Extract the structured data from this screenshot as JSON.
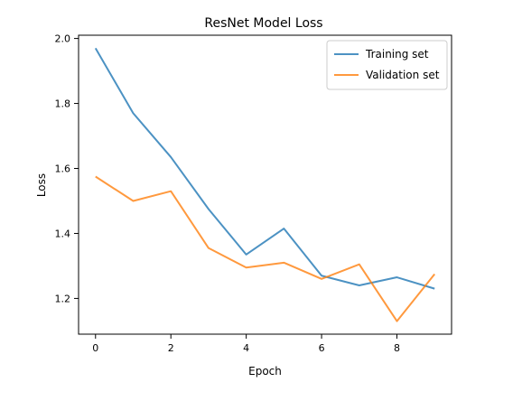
{
  "chart_data": {
    "type": "line",
    "title": "ResNet Model Loss",
    "xlabel": "Epoch",
    "ylabel": "Loss",
    "xlim": [
      -0.45,
      9.45
    ],
    "ylim": [
      1.09,
      2.01
    ],
    "x_ticks": [
      0,
      2,
      4,
      6,
      8
    ],
    "y_ticks": [
      1.2,
      1.4,
      1.6,
      1.8,
      2.0
    ],
    "y_tick_labels": [
      "1.2",
      "1.4",
      "1.6",
      "1.8",
      "2.0"
    ],
    "grid": false,
    "legend_position": "upper-right",
    "x": [
      0,
      1,
      2,
      3,
      4,
      5,
      6,
      7,
      8,
      9
    ],
    "series": [
      {
        "name": "Training set",
        "color": "#1f77b4",
        "values": [
          1.97,
          1.77,
          1.635,
          1.475,
          1.335,
          1.415,
          1.27,
          1.24,
          1.265,
          1.23
        ]
      },
      {
        "name": "Validation set",
        "color": "#ff7f0e",
        "values": [
          1.575,
          1.5,
          1.53,
          1.355,
          1.295,
          1.31,
          1.26,
          1.305,
          1.13,
          1.275
        ]
      }
    ]
  }
}
